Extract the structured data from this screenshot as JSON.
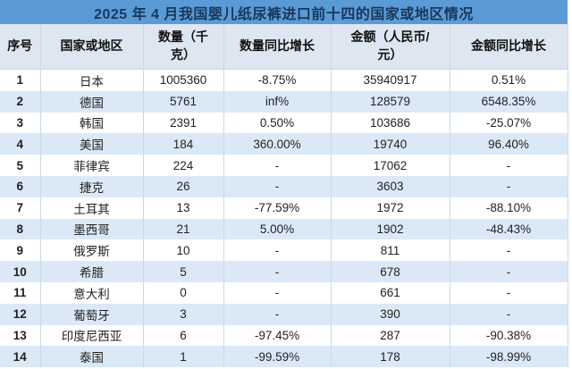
{
  "colors": {
    "title-bar-bg": "#5B9BD5",
    "title-text": "#17375D",
    "header-bg": "#DDE6F1",
    "header-text": "#111111",
    "band-row-bg": "#DBE9F7",
    "grid-line": "#CBD8E8",
    "body-text": "#222222"
  },
  "display": {
    "headers": [
      {
        "id": "rank",
        "text": "序号"
      },
      {
        "id": "country",
        "text": "国家或地区"
      },
      {
        "id": "quantity-kg",
        "text": "数量（千\n克）"
      },
      {
        "id": "quantity-yoy",
        "text": "数量同比增长"
      },
      {
        "id": "amount-rmb",
        "text": "金额（人民币/\n元）"
      },
      {
        "id": "amount-yoy",
        "text": "金额同比增长"
      }
    ]
  },
  "chart_data": {
    "type": "table",
    "title": "2025 年 4 月我国婴儿纸尿裤进口前十四的国家或地区情况",
    "columns": [
      "序号",
      "国家或地区",
      "数量（千克）",
      "数量同比增长",
      "金额（人民币/元）",
      "金额同比增长"
    ],
    "rows": [
      [
        "1",
        "日本",
        "1005360",
        "-8.75%",
        "35940917",
        "0.51%"
      ],
      [
        "2",
        "德国",
        "5761",
        "inf%",
        "128579",
        "6548.35%"
      ],
      [
        "3",
        "韩国",
        "2391",
        "0.50%",
        "103686",
        "-25.07%"
      ],
      [
        "4",
        "美国",
        "184",
        "360.00%",
        "19740",
        "96.40%"
      ],
      [
        "5",
        "菲律宾",
        "224",
        "-",
        "17062",
        "-"
      ],
      [
        "6",
        "捷克",
        "26",
        "-",
        "3603",
        "-"
      ],
      [
        "7",
        "土耳其",
        "13",
        "-77.59%",
        "1972",
        "-88.10%"
      ],
      [
        "8",
        "墨西哥",
        "21",
        "5.00%",
        "1902",
        "-48.43%"
      ],
      [
        "9",
        "俄罗斯",
        "10",
        "-",
        "811",
        "-"
      ],
      [
        "10",
        "希腊",
        "5",
        "-",
        "678",
        "-"
      ],
      [
        "11",
        "意大利",
        "0",
        "-",
        "661",
        "-"
      ],
      [
        "12",
        "葡萄牙",
        "3",
        "-",
        "390",
        "-"
      ],
      [
        "13",
        "印度尼西亚",
        "6",
        "-97.45%",
        "287",
        "-90.38%"
      ],
      [
        "14",
        "泰国",
        "1",
        "-99.59%",
        "178",
        "-98.99%"
      ]
    ]
  }
}
